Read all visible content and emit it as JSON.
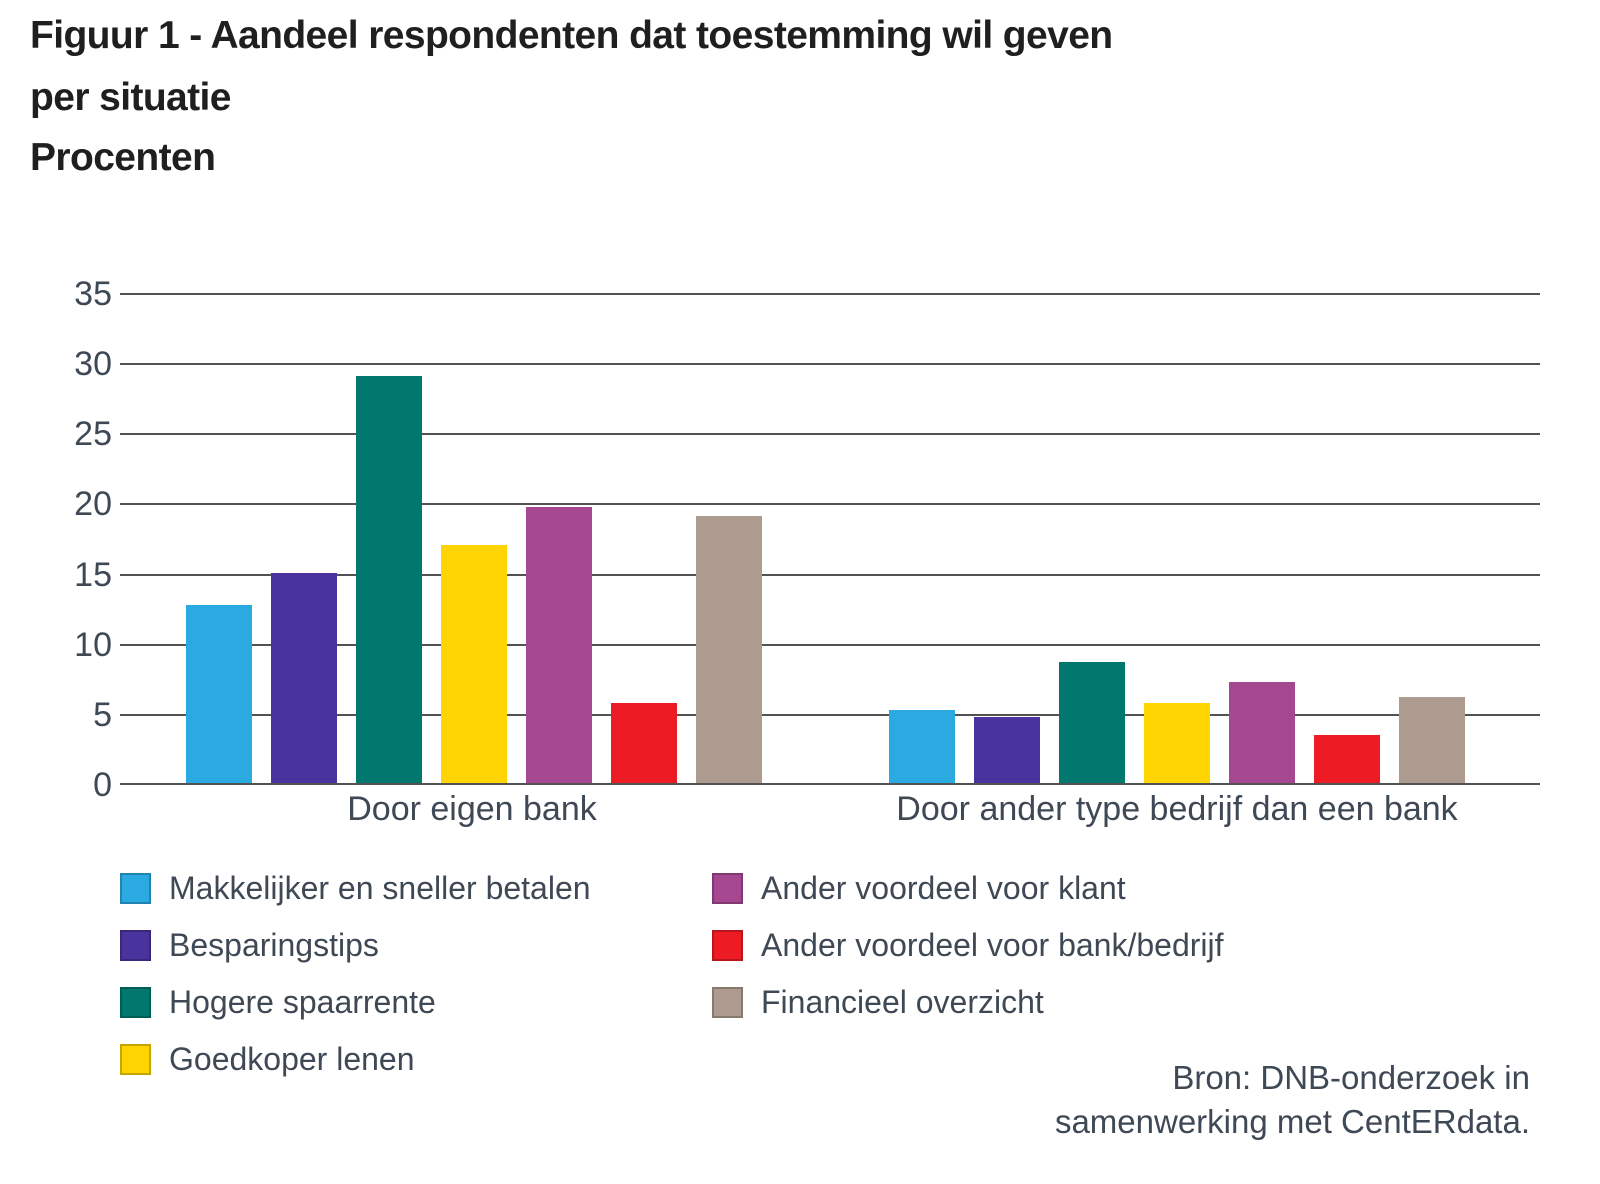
{
  "title": {
    "line1": "Figuur 1 - Aandeel respondenten dat toestemming wil geven",
    "line2": "per situatie",
    "line3": "Procenten"
  },
  "colors": {
    "title_text": "#1f1f1f",
    "axis_text": "#3e4955",
    "gridline": "#525252",
    "background": "#ffffff"
  },
  "chart_data": {
    "type": "bar",
    "title": "Figuur 1 - Aandeel respondenten dat toestemming wil geven per situatie",
    "subtitle": "Procenten",
    "xlabel": "",
    "ylabel": "Procenten",
    "ylim": [
      0,
      35
    ],
    "yticks": [
      0,
      5,
      10,
      15,
      20,
      25,
      30,
      35
    ],
    "grid": true,
    "legend_position": "bottom",
    "categories": [
      "Door eigen bank",
      "Door ander type bedrijf dan een bank"
    ],
    "series": [
      {
        "name": "Makkelijker en sneller betalen",
        "color": "#2baae2",
        "values": [
          12.7,
          5.2
        ]
      },
      {
        "name": "Besparingstips",
        "color": "#49339c",
        "values": [
          15.0,
          4.7
        ]
      },
      {
        "name": "Hogere spaarrente",
        "color": "#00786d",
        "values": [
          29.0,
          8.6
        ]
      },
      {
        "name": "Goedkoper lenen",
        "color": "#ffd400",
        "values": [
          17.0,
          5.7
        ]
      },
      {
        "name": "Ander voordeel voor klant",
        "color": "#a64891",
        "values": [
          19.7,
          7.2
        ]
      },
      {
        "name": "Ander voordeel voor bank/bedrijf",
        "color": "#ec1b24",
        "values": [
          5.7,
          3.4
        ]
      },
      {
        "name": "Financieel overzicht",
        "color": "#ac9b8e",
        "values": [
          19.0,
          6.1
        ]
      }
    ],
    "source_line1": "Bron: DNB-onderzoek in",
    "source_line2": "samenwerking met CentERdata."
  },
  "legend": {
    "columns": [
      [
        0,
        1,
        2,
        3
      ],
      [
        4,
        5,
        6
      ]
    ]
  }
}
